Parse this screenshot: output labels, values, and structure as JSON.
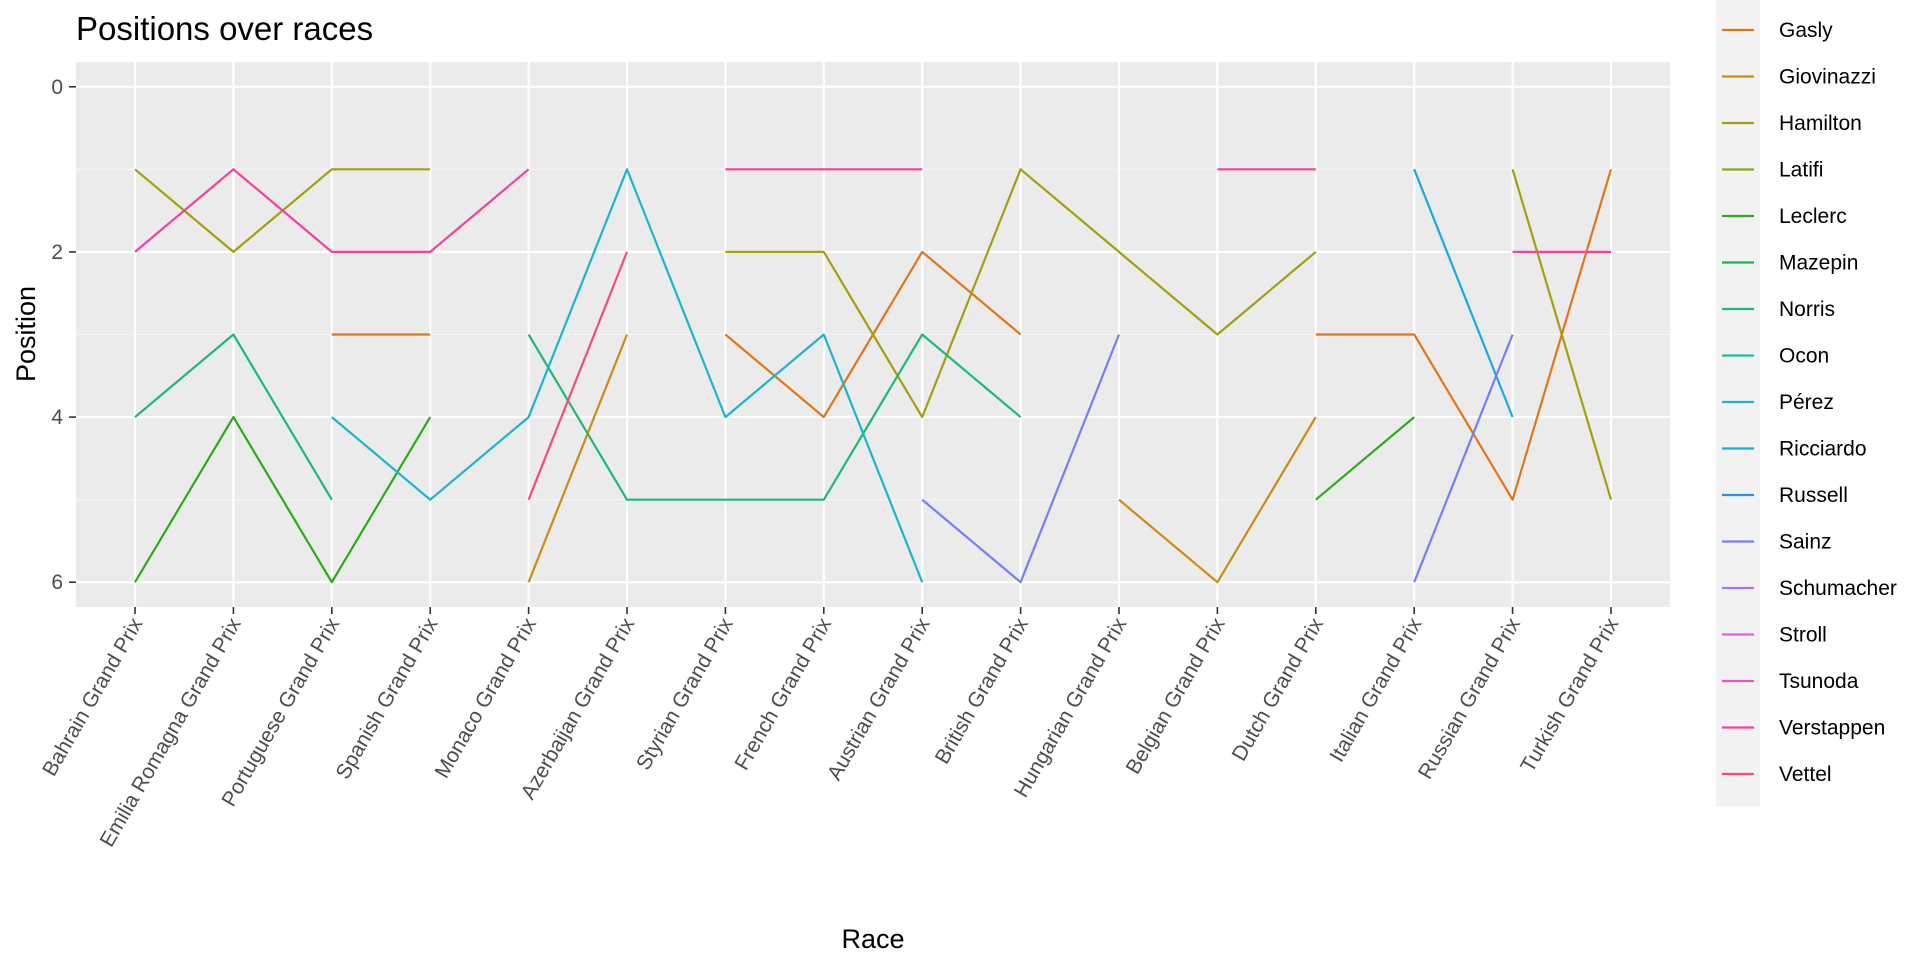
{
  "chart_data": {
    "type": "line",
    "title": "Positions over races",
    "xlabel": "Race",
    "ylabel": "Position",
    "ylim": [
      6.3,
      -0.3
    ],
    "y_reversed": true,
    "y_ticks": [
      0,
      2,
      4,
      6
    ],
    "grid": true,
    "legend_position": "right",
    "categories": [
      "Bahrain Grand Prix",
      "Emilia Romagna Grand Prix",
      "Portuguese Grand Prix",
      "Spanish Grand Prix",
      "Monaco Grand Prix",
      "Azerbaijan Grand Prix",
      "Styrian Grand Prix",
      "French Grand Prix",
      "Austrian Grand Prix",
      "British Grand Prix",
      "Hungarian Grand Prix",
      "Belgian Grand Prix",
      "Dutch Grand Prix",
      "Italian Grand Prix",
      "Russian Grand Prix",
      "Turkish Grand Prix"
    ],
    "series": [
      {
        "name": "Gasly",
        "color": "#E0761A",
        "values": [
          null,
          null,
          3,
          3,
          null,
          null,
          3,
          4,
          2,
          3,
          null,
          null,
          3,
          3,
          5,
          1
        ]
      },
      {
        "name": "Giovinazzi",
        "color": "#CF8B11",
        "values": [
          null,
          null,
          null,
          null,
          6,
          3,
          null,
          null,
          null,
          null,
          5,
          6,
          4,
          null,
          null,
          null
        ]
      },
      {
        "name": "Hamilton",
        "color": "#A2A00E",
        "values": [
          1,
          2,
          1,
          1,
          null,
          null,
          2,
          2,
          4,
          1,
          2,
          3,
          2,
          null,
          1,
          5
        ]
      },
      {
        "name": "Latifi",
        "color": "#7FAE14",
        "values": [
          null,
          null,
          null,
          null,
          null,
          null,
          null,
          null,
          null,
          null,
          null,
          null,
          null,
          null,
          null,
          null
        ]
      },
      {
        "name": "Leclerc",
        "color": "#2DAA1A",
        "values": [
          6,
          4,
          6,
          4,
          null,
          null,
          null,
          null,
          null,
          null,
          null,
          null,
          5,
          4,
          null,
          null
        ]
      },
      {
        "name": "Mazepin",
        "color": "#1FB34E",
        "values": [
          null,
          null,
          null,
          null,
          null,
          null,
          null,
          null,
          null,
          null,
          null,
          null,
          null,
          null,
          null,
          null
        ]
      },
      {
        "name": "Norris",
        "color": "#1EB97A",
        "values": [
          4,
          3,
          5,
          null,
          3,
          5,
          5,
          5,
          3,
          4,
          null,
          null,
          null,
          null,
          null,
          null
        ]
      },
      {
        "name": "Ocon",
        "color": "#1FB8A4",
        "values": [
          null,
          null,
          null,
          null,
          null,
          null,
          null,
          null,
          null,
          null,
          null,
          null,
          null,
          null,
          null,
          null
        ]
      },
      {
        "name": "Pérez",
        "color": "#1BB5CC",
        "values": [
          null,
          null,
          4,
          5,
          4,
          1,
          4,
          3,
          6,
          null,
          null,
          null,
          null,
          null,
          null,
          null
        ]
      },
      {
        "name": "Ricciardo",
        "color": "#1AA8E3",
        "values": [
          null,
          null,
          null,
          null,
          null,
          null,
          null,
          null,
          null,
          null,
          null,
          null,
          null,
          1,
          4,
          null
        ]
      },
      {
        "name": "Russell",
        "color": "#2990EA",
        "values": [
          null,
          null,
          null,
          null,
          null,
          null,
          null,
          null,
          null,
          null,
          null,
          null,
          null,
          null,
          null,
          null
        ]
      },
      {
        "name": "Sainz",
        "color": "#757EF5",
        "values": [
          null,
          null,
          null,
          null,
          null,
          null,
          null,
          null,
          5,
          6,
          3,
          null,
          null,
          6,
          3,
          null
        ]
      },
      {
        "name": "Schumacher",
        "color": "#A575F2",
        "values": [
          null,
          null,
          null,
          null,
          null,
          null,
          null,
          null,
          null,
          null,
          null,
          null,
          null,
          null,
          null,
          null
        ]
      },
      {
        "name": "Stroll",
        "color": "#E45EE8",
        "values": [
          null,
          null,
          null,
          null,
          null,
          null,
          null,
          null,
          null,
          null,
          null,
          null,
          null,
          null,
          null,
          null
        ]
      },
      {
        "name": "Tsunoda",
        "color": "#F450C3",
        "values": [
          null,
          null,
          null,
          null,
          null,
          null,
          null,
          null,
          null,
          null,
          null,
          null,
          null,
          null,
          null,
          null
        ]
      },
      {
        "name": "Verstappen",
        "color": "#F5409F",
        "values": [
          2,
          1,
          2,
          2,
          1,
          null,
          1,
          1,
          1,
          null,
          null,
          1,
          1,
          null,
          2,
          2
        ]
      },
      {
        "name": "Vettel",
        "color": "#F24B7E",
        "values": [
          null,
          null,
          null,
          null,
          5,
          2,
          null,
          null,
          null,
          null,
          null,
          null,
          null,
          null,
          null,
          null
        ]
      }
    ]
  }
}
